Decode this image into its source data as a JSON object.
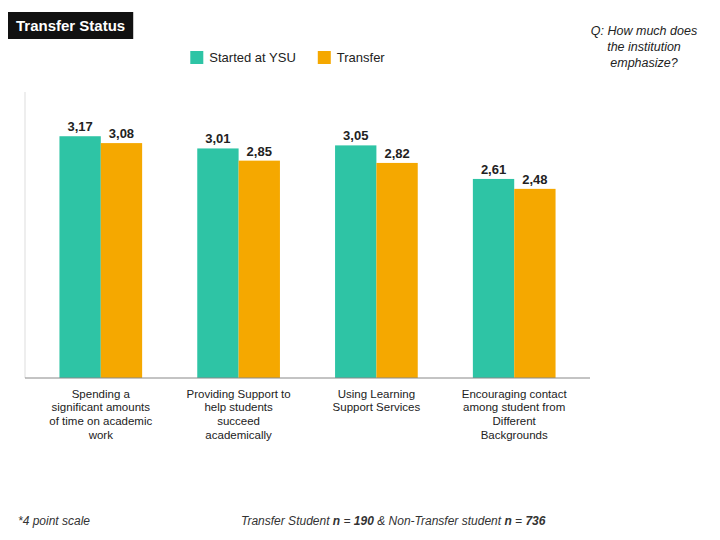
{
  "chart_data": {
    "type": "bar",
    "title": "Transfer Status",
    "categories": [
      "Spending a\nsignificant amounts\nof time on academic\nwork",
      "Providing Support to\nhelp students\nsucceed\nacademically",
      "Using Learning\nSupport Services",
      "Encouraging contact\namong student from\nDifferent\nBackgrounds"
    ],
    "series": [
      {
        "name": "Started at YSU",
        "color": "#2EC4A5",
        "values": [
          3.17,
          3.01,
          3.05,
          2.61
        ],
        "value_labels": [
          "3,17",
          "3,01",
          "3,05",
          "2,61"
        ]
      },
      {
        "name": "Transfer",
        "color": "#F5A800",
        "values": [
          3.08,
          2.85,
          2.82,
          2.48
        ],
        "value_labels": [
          "3,08",
          "2,85",
          "2,82",
          "2,48"
        ]
      }
    ],
    "ylim": [
      0,
      3.75
    ],
    "grid": false,
    "legend": "top",
    "data_labels": true,
    "tick_labels": "x",
    "annotations": [
      "Q: How much does\nthe institution\nemphasize?",
      "*4 point scale",
      "Transfer Student n = 190 & Non-Transfer student n = 736"
    ]
  }
}
